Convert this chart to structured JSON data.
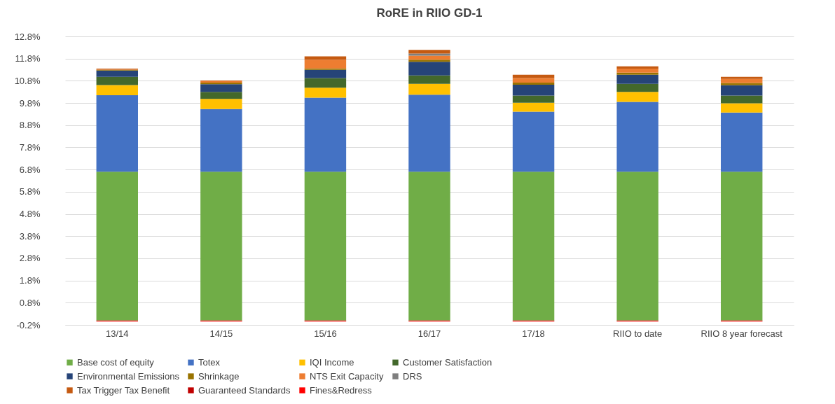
{
  "chart_data": {
    "type": "bar",
    "title": "RoRE in RIIO GD-1",
    "stacked": true,
    "categories": [
      "13/14",
      "14/15",
      "15/16",
      "16/17",
      "17/18",
      "RIIO to date",
      "RIIO 8 year forecast"
    ],
    "series": [
      {
        "name": "Base cost of equity",
        "color": "#70ad47",
        "values": [
          6.7,
          6.7,
          6.7,
          6.7,
          6.7,
          6.7,
          6.7
        ]
      },
      {
        "name": "Totex",
        "color": "#4472c4",
        "values": [
          3.45,
          2.83,
          3.34,
          3.47,
          2.71,
          3.15,
          2.67
        ]
      },
      {
        "name": "IQI Income",
        "color": "#ffc000",
        "values": [
          0.46,
          0.45,
          0.45,
          0.49,
          0.4,
          0.45,
          0.42
        ]
      },
      {
        "name": "Customer Satisfaction",
        "color": "#43682b",
        "values": [
          0.37,
          0.32,
          0.43,
          0.38,
          0.32,
          0.36,
          0.34
        ]
      },
      {
        "name": "Environmental Emissions",
        "color": "#264478",
        "values": [
          0.28,
          0.35,
          0.37,
          0.62,
          0.49,
          0.41,
          0.47
        ]
      },
      {
        "name": "Shrinkage",
        "color": "#997300",
        "values": [
          0.03,
          0.07,
          0.07,
          0.09,
          0.1,
          0.1,
          0.1
        ]
      },
      {
        "name": "NTS Exit Capacity",
        "color": "#ed7d31",
        "values": [
          0.02,
          0.06,
          0.38,
          0.18,
          0.2,
          0.18,
          0.18
        ]
      },
      {
        "name": "DRS",
        "color": "#7f7f7f",
        "values": [
          0,
          0,
          0,
          0.1,
          0,
          0,
          0
        ]
      },
      {
        "name": "Tax Trigger Tax Benefit",
        "color": "#c55a11",
        "values": [
          0.04,
          0.03,
          0.16,
          0.16,
          0.15,
          0.1,
          0.1
        ]
      },
      {
        "name": "Guaranteed Standards",
        "color": "#c00000",
        "values": [
          -0.03,
          -0.03,
          -0.03,
          -0.03,
          -0.03,
          -0.03,
          -0.03
        ]
      },
      {
        "name": "Fines&Redress",
        "color": "#ff0000",
        "values": [
          -0.02,
          -0.02,
          -0.02,
          -0.02,
          -0.02,
          -0.02,
          -0.02
        ]
      }
    ],
    "ylim": [
      -0.2,
      12.8
    ],
    "yticks": [
      {
        "value": -0.2,
        "label": "-0.2%"
      },
      {
        "value": 0.8,
        "label": "0.8%"
      },
      {
        "value": 1.8,
        "label": "1.8%"
      },
      {
        "value": 2.8,
        "label": "2.8%"
      },
      {
        "value": 3.8,
        "label": "3.8%"
      },
      {
        "value": 4.8,
        "label": "4.8%"
      },
      {
        "value": 5.8,
        "label": "5.8%"
      },
      {
        "value": 6.8,
        "label": "6.8%"
      },
      {
        "value": 7.8,
        "label": "7.8%"
      },
      {
        "value": 8.8,
        "label": "8.8%"
      },
      {
        "value": 9.8,
        "label": "9.8%"
      },
      {
        "value": 10.8,
        "label": "10.8%"
      },
      {
        "value": 11.8,
        "label": "11.8%"
      },
      {
        "value": 12.8,
        "label": "12.8%"
      }
    ],
    "grid": "y",
    "legend": "bottom"
  }
}
